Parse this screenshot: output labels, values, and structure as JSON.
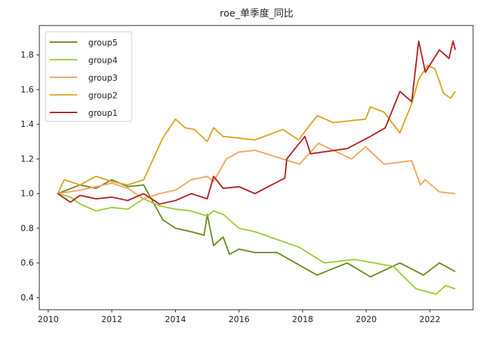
{
  "chart_data": {
    "type": "line",
    "title": "roe_单季度_同比",
    "xlabel": "",
    "ylabel": "",
    "xlim": [
      2009.72,
      2023.36
    ],
    "ylim": [
      0.33,
      1.97
    ],
    "xticks": [
      2010,
      2012,
      2014,
      2016,
      2018,
      2020,
      2022
    ],
    "yticks": [
      0.4,
      0.6,
      0.8,
      1.0,
      1.2,
      1.4,
      1.6,
      1.8
    ],
    "ytick_labels": [
      "0.4",
      "0.6",
      "0.8",
      "1.0",
      "1.2",
      "1.4",
      "1.6",
      "1.8"
    ],
    "grid": false,
    "legend_position": "top-left",
    "series": [
      {
        "name": "group5",
        "color": "#6b8e23",
        "x": [
          2010.3,
          2011,
          2011.5,
          2012,
          2012.5,
          2013,
          2013.3,
          2013.6,
          2014,
          2014.5,
          2014.9,
          2015,
          2015.2,
          2015.5,
          2015.7,
          2016,
          2016.5,
          2017.2,
          2018.45,
          2019.4,
          2020.13,
          2021.06,
          2021.8,
          2022.3,
          2022.8
        ],
        "y": [
          1.0,
          1.05,
          1.03,
          1.08,
          1.04,
          1.05,
          0.95,
          0.85,
          0.8,
          0.78,
          0.76,
          0.88,
          0.7,
          0.75,
          0.65,
          0.68,
          0.66,
          0.66,
          0.53,
          0.6,
          0.52,
          0.6,
          0.53,
          0.6,
          0.55
        ]
      },
      {
        "name": "group4",
        "color": "#9acd32",
        "x": [
          2010.3,
          2010.7,
          2011,
          2011.5,
          2012,
          2012.5,
          2013,
          2013.5,
          2014,
          2014.5,
          2015,
          2015.2,
          2015.5,
          2016,
          2016.5,
          2017.9,
          2018.68,
          2019.63,
          2020.85,
          2021.57,
          2022.2,
          2022.5,
          2022.8
        ],
        "y": [
          1.0,
          0.98,
          0.94,
          0.9,
          0.92,
          0.91,
          0.97,
          0.93,
          0.91,
          0.9,
          0.87,
          0.9,
          0.88,
          0.8,
          0.78,
          0.69,
          0.6,
          0.62,
          0.58,
          0.45,
          0.42,
          0.47,
          0.45
        ]
      },
      {
        "name": "group3",
        "color": "#f4a460",
        "x": [
          2010.3,
          2011,
          2012,
          2012.5,
          2013,
          2013.5,
          2014,
          2014.5,
          2015,
          2015.2,
          2015.6,
          2016,
          2016.5,
          2017.9,
          2018.5,
          2019.54,
          2019.98,
          2020.56,
          2021.43,
          2021.7,
          2021.85,
          2022.3,
          2022.8
        ],
        "y": [
          1.0,
          1.02,
          1.06,
          1.03,
          0.97,
          1.0,
          1.02,
          1.08,
          1.1,
          1.07,
          1.2,
          1.24,
          1.25,
          1.17,
          1.29,
          1.2,
          1.27,
          1.17,
          1.19,
          1.05,
          1.08,
          1.01,
          1.0
        ]
      },
      {
        "name": "group2",
        "color": "#daa520",
        "x": [
          2010.3,
          2010.5,
          2011,
          2011.5,
          2012,
          2012.5,
          2013,
          2013.3,
          2013.6,
          2014,
          2014.3,
          2014.6,
          2015,
          2015.2,
          2015.5,
          2016,
          2016.5,
          2017.38,
          2017.87,
          2018.46,
          2018.96,
          2019.98,
          2020.13,
          2020.56,
          2021.06,
          2021.43,
          2021.65,
          2021.93,
          2022.16,
          2022.43,
          2022.65,
          2022.8
        ],
        "y": [
          1.0,
          1.08,
          1.05,
          1.1,
          1.07,
          1.05,
          1.08,
          1.2,
          1.32,
          1.43,
          1.38,
          1.37,
          1.3,
          1.38,
          1.33,
          1.32,
          1.31,
          1.37,
          1.31,
          1.45,
          1.41,
          1.43,
          1.5,
          1.47,
          1.35,
          1.52,
          1.66,
          1.74,
          1.72,
          1.58,
          1.55,
          1.59
        ]
      },
      {
        "name": "group1",
        "color": "#b22222",
        "x": [
          2010.3,
          2010.7,
          2011,
          2011.5,
          2012,
          2012.5,
          2013,
          2013.5,
          2014,
          2014.5,
          2015,
          2015.2,
          2015.5,
          2016,
          2016.5,
          2017.44,
          2017.5,
          2018.07,
          2018.25,
          2019.4,
          2020.13,
          2020.6,
          2021.06,
          2021.43,
          2021.65,
          2021.86,
          2022.3,
          2022.6,
          2022.73,
          2022.8
        ],
        "y": [
          1.0,
          0.95,
          0.99,
          0.97,
          0.98,
          0.96,
          1.0,
          0.94,
          0.96,
          1.0,
          0.97,
          1.1,
          1.03,
          1.04,
          1.0,
          1.09,
          1.2,
          1.33,
          1.23,
          1.26,
          1.33,
          1.38,
          1.59,
          1.53,
          1.88,
          1.7,
          1.83,
          1.78,
          1.88,
          1.83
        ]
      }
    ]
  }
}
